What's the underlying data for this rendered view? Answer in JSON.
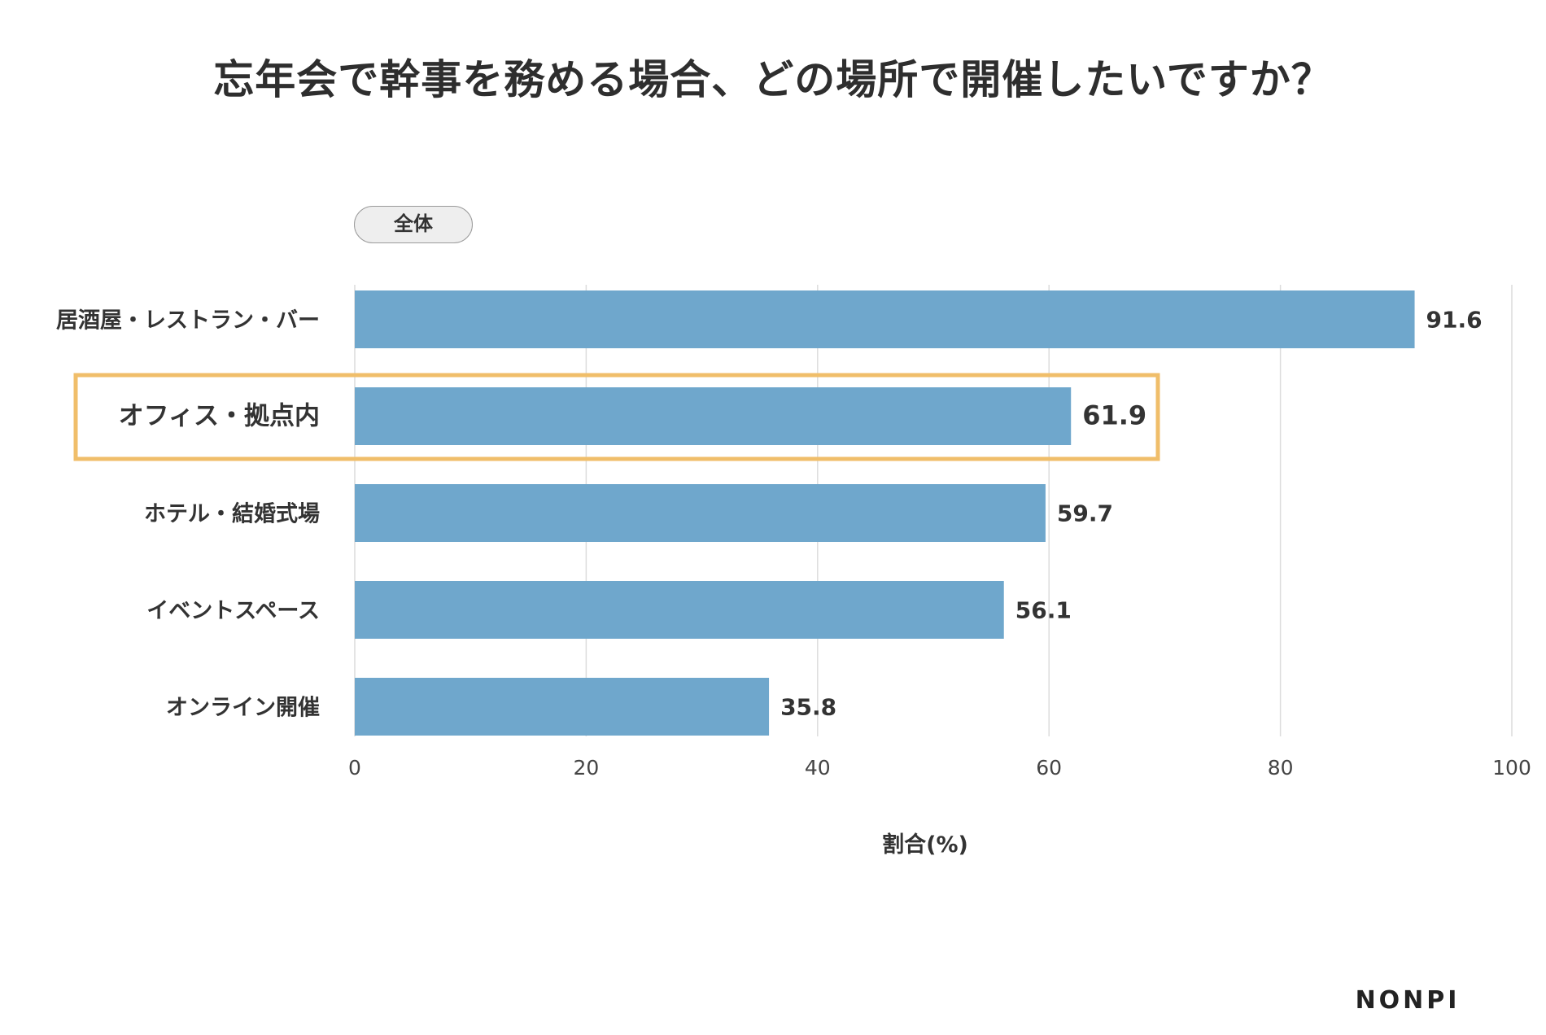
{
  "title": "忘年会で幹事を務める場合、どの場所で開催したいですか？",
  "segment_label": "全体",
  "brand": "NONPI",
  "chart_data": {
    "type": "bar",
    "orientation": "horizontal",
    "categories": [
      "居酒屋・レストラン・バー",
      "オフィス・拠点内",
      "ホテル・結婚式場",
      "イベントスペース",
      "オンライン開催"
    ],
    "values": [
      91.6,
      61.9,
      59.7,
      56.1,
      35.8
    ],
    "value_labels": [
      "91.6",
      "61.9",
      "59.7",
      "56.1",
      "35.8"
    ],
    "highlighted_category": "オフィス・拠点内",
    "xlabel": "割合(%)",
    "ylabel": "",
    "xlim": [
      0,
      100
    ],
    "xticks": [
      0,
      20,
      40,
      60,
      80,
      100
    ],
    "tick_labels": [
      "0",
      "20",
      "40",
      "60",
      "80",
      "100"
    ],
    "grid": true,
    "bar_color": "#6fa7cc",
    "highlight_color": "#f0be6a"
  }
}
